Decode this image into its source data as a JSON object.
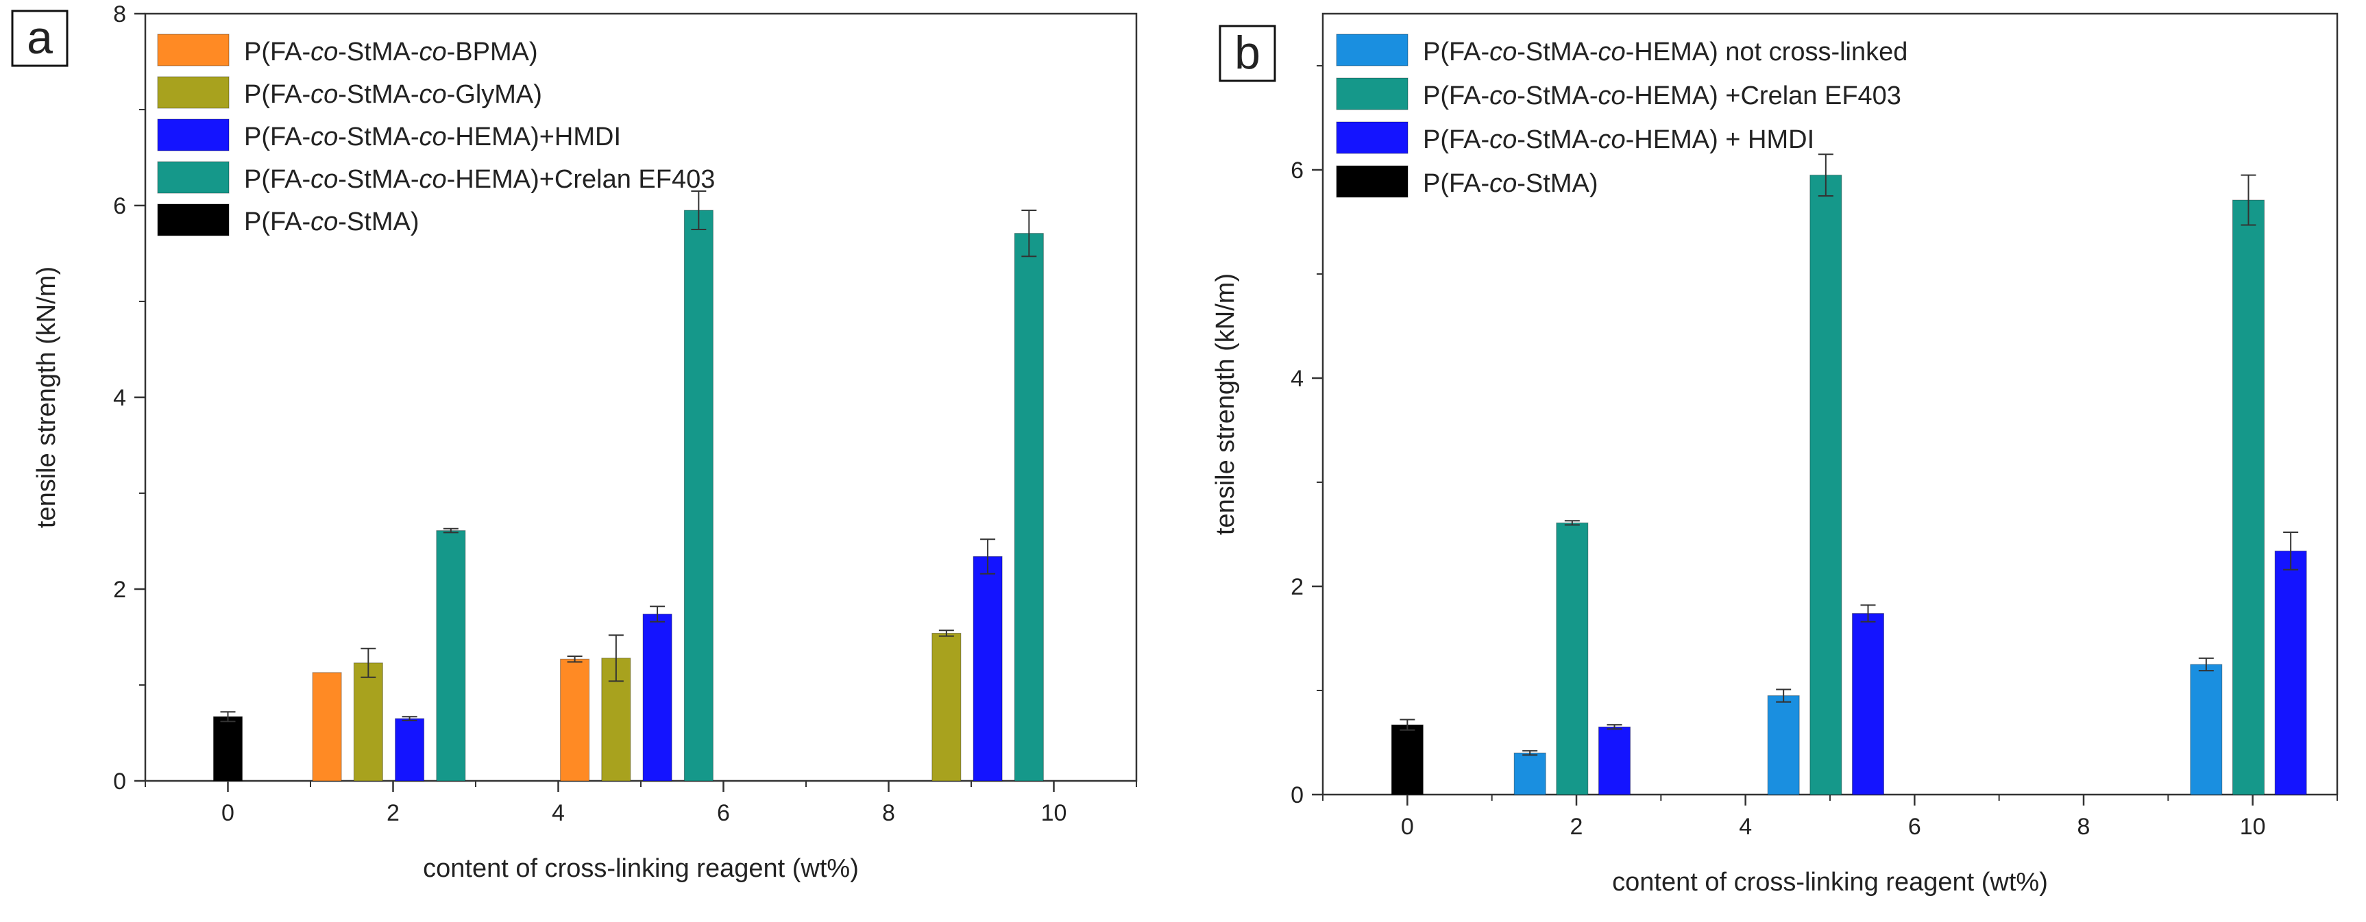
{
  "chart_data": [
    {
      "type": "bar",
      "panel_label": "a",
      "xlabel": "content of cross-linking reagent (wt%)",
      "ylabel": "tensile strength (kN/m)",
      "xlim": [
        -1,
        11
      ],
      "ylim": [
        0,
        8
      ],
      "xticks": [
        0,
        2,
        4,
        6,
        8,
        10
      ],
      "yticks": [
        0,
        2,
        4,
        6,
        8
      ],
      "legend_position": "top-left",
      "legend": [
        {
          "pre": "P(FA-",
          "it1": "co",
          "mid": "-StMA-",
          "it2": "co",
          "post": "-BPMA)",
          "color": "#ff8a24"
        },
        {
          "pre": "P(FA-",
          "it1": "co",
          "mid": "-StMA-",
          "it2": "co",
          "post": "-GlyMA)",
          "color": "#a8a21e"
        },
        {
          "pre": "P(FA-",
          "it1": "co",
          "mid": "-StMA-",
          "it2": "co",
          "post": "-HEMA)+HMDI",
          "color": "#1414ff"
        },
        {
          "pre": "P(FA-",
          "it1": "co",
          "mid": "-StMA-",
          "it2": "co",
          "post": "-HEMA)+Crelan EF403",
          "color": "#15988a"
        },
        {
          "pre": "P(FA-",
          "it1": "co",
          "mid": "-StMA)",
          "it2": "",
          "post": "",
          "color": "#000000"
        }
      ],
      "bars": [
        {
          "series": 4,
          "x": 0,
          "value": 0.67,
          "error": 0.05
        },
        {
          "series": 0,
          "x": 1.2,
          "value": 1.13,
          "error": 0.0
        },
        {
          "series": 1,
          "x": 1.7,
          "value": 1.23,
          "error": 0.15
        },
        {
          "series": 2,
          "x": 2.2,
          "value": 0.65,
          "error": 0.02
        },
        {
          "series": 3,
          "x": 2.7,
          "value": 2.61,
          "error": 0.02
        },
        {
          "series": 0,
          "x": 4.2,
          "value": 1.27,
          "error": 0.03
        },
        {
          "series": 1,
          "x": 4.7,
          "value": 1.28,
          "error": 0.24
        },
        {
          "series": 2,
          "x": 5.2,
          "value": 1.74,
          "error": 0.08
        },
        {
          "series": 3,
          "x": 5.7,
          "value": 5.95,
          "error": 0.2
        },
        {
          "series": 1,
          "x": 8.7,
          "value": 1.54,
          "error": 0.03
        },
        {
          "series": 2,
          "x": 9.2,
          "value": 2.34,
          "error": 0.18
        },
        {
          "series": 3,
          "x": 9.7,
          "value": 5.71,
          "error": 0.24
        }
      ]
    },
    {
      "type": "bar",
      "panel_label": "b",
      "xlabel": "content of cross-linking reagent (wt%)",
      "ylabel": "tensile strength (kN/m)",
      "xlim": [
        -1,
        11
      ],
      "ylim": [
        0,
        7.5
      ],
      "xticks": [
        0,
        2,
        4,
        6,
        8,
        10
      ],
      "yticks": [
        0,
        2,
        4,
        6
      ],
      "legend_position": "top-left",
      "legend": [
        {
          "pre": "P(FA-",
          "it1": "co",
          "mid": "-StMA-",
          "it2": "co",
          "post": "-HEMA) not cross-linked",
          "color": "#1a8fe0"
        },
        {
          "pre": "P(FA-",
          "it1": "co",
          "mid": "-StMA-",
          "it2": "co",
          "post": "-HEMA) +Crelan EF403",
          "color": "#15988a"
        },
        {
          "pre": "P(FA-",
          "it1": "co",
          "mid": "-StMA-",
          "it2": "co",
          "post": "-HEMA) + HMDI",
          "color": "#1414ff"
        },
        {
          "pre": "P(FA-",
          "it1": "co",
          "mid": "-StMA)",
          "it2": "",
          "post": "",
          "color": "#000000"
        }
      ],
      "bars": [
        {
          "series": 3,
          "x": 0,
          "value": 0.67,
          "error": 0.05
        },
        {
          "series": 0,
          "x": 1.45,
          "value": 0.4,
          "error": 0.02
        },
        {
          "series": 1,
          "x": 1.95,
          "value": 2.61,
          "error": 0.02
        },
        {
          "series": 2,
          "x": 2.45,
          "value": 0.65,
          "error": 0.02
        },
        {
          "series": 0,
          "x": 4.45,
          "value": 0.95,
          "error": 0.06
        },
        {
          "series": 1,
          "x": 4.95,
          "value": 5.95,
          "error": 0.2
        },
        {
          "series": 2,
          "x": 5.45,
          "value": 1.74,
          "error": 0.08
        },
        {
          "series": 0,
          "x": 9.45,
          "value": 1.25,
          "error": 0.06
        },
        {
          "series": 1,
          "x": 9.95,
          "value": 5.71,
          "error": 0.24
        },
        {
          "series": 2,
          "x": 10.45,
          "value": 2.34,
          "error": 0.18
        }
      ]
    }
  ]
}
